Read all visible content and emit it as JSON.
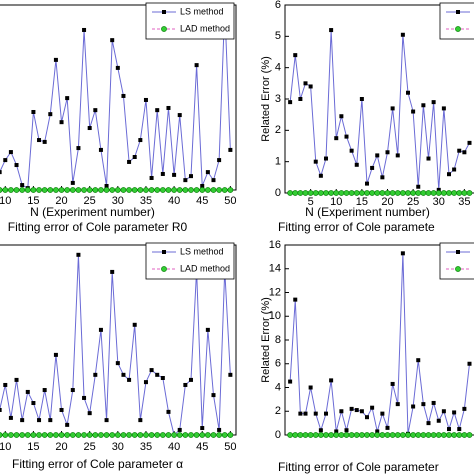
{
  "chart_data": [
    {
      "type": "line",
      "xlabel": "N (Experiment number)",
      "caption": "Fitting error of Cole parameter R0",
      "x": [
        9,
        10,
        11,
        12,
        13,
        14,
        15,
        16,
        17,
        18,
        19,
        20,
        21,
        22,
        23,
        24,
        25,
        26,
        27,
        28,
        29,
        30,
        31,
        32,
        33,
        34,
        35,
        36,
        37,
        38,
        39,
        40,
        41,
        42,
        43,
        44,
        45,
        46,
        47,
        48,
        49,
        50
      ],
      "series": [
        {
          "name": "LS method",
          "color": "#6b6bd6",
          "values": [
            0.58,
            0.97,
            1.23,
            0.81,
            0.16,
            0.06,
            2.53,
            1.62,
            1.56,
            2.46,
            4.22,
            2.2,
            2.98,
            0.23,
            1.36,
            5.19,
            2.01,
            2.59,
            1.3,
            0.13,
            4.86,
            3.96,
            3.05,
            0.91,
            1.07,
            1.62,
            2.92,
            0.39,
            2.59,
            0.52,
            2.66,
            0.49,
            2.43,
            0.32,
            0.45,
            4.05,
            0.13,
            0.58,
            0.32,
            0.97,
            5.9,
            1.3
          ]
        },
        {
          "name": "LAD method",
          "color": "#22aa22",
          "values": [
            0,
            0,
            0,
            0,
            0,
            0,
            0,
            0,
            0,
            0,
            0,
            0,
            0,
            0,
            0,
            0,
            0,
            0,
            0,
            0,
            0,
            0,
            0,
            0,
            0,
            0,
            0,
            0,
            0,
            0,
            0,
            0,
            0,
            0,
            0,
            0,
            0,
            0,
            0,
            0,
            0,
            0
          ]
        }
      ],
      "xlim": [
        0,
        51
      ],
      "ylim": [
        0,
        6
      ],
      "xticks": [
        10,
        15,
        20,
        25,
        30,
        35,
        40,
        45,
        50
      ],
      "legend": "upper right"
    },
    {
      "type": "line",
      "xlabel": "N (Experiment number)",
      "ylabel": "Related Error (%)",
      "caption": "Fitting error of Cole paramete",
      "x": [
        1,
        2,
        3,
        4,
        5,
        6,
        7,
        8,
        9,
        10,
        11,
        12,
        13,
        14,
        15,
        16,
        17,
        18,
        19,
        20,
        21,
        22,
        23,
        24,
        25,
        26,
        27,
        28,
        29,
        30,
        31,
        32,
        33,
        34,
        35,
        36
      ],
      "series": [
        {
          "color": "#6b6bd6",
          "values": [
            2.9,
            4.4,
            3.0,
            3.5,
            3.4,
            1.0,
            0.55,
            1.1,
            5.2,
            1.75,
            2.45,
            1.8,
            1.35,
            0.9,
            3.0,
            0.3,
            0.8,
            1.2,
            0.5,
            1.3,
            2.7,
            1.2,
            5.05,
            3.2,
            2.6,
            0.2,
            2.8,
            1.1,
            2.9,
            0.1,
            2.7,
            0.6,
            0.75,
            1.35,
            1.3,
            1.6
          ]
        },
        {
          "color": "#22aa22",
          "values": [
            0,
            0,
            0,
            0,
            0,
            0,
            0,
            0,
            0,
            0,
            0,
            0,
            0,
            0,
            0,
            0,
            0,
            0,
            0,
            0,
            0,
            0,
            0,
            0,
            0,
            0,
            0,
            0,
            0,
            0,
            0,
            0,
            0,
            0,
            0,
            0
          ]
        }
      ],
      "xlim": [
        0,
        40
      ],
      "ylim": [
        0,
        6
      ],
      "xticks": [
        5,
        10,
        15,
        20,
        25,
        30,
        35
      ],
      "yticks": [
        0,
        1,
        2,
        3,
        4,
        5,
        6
      ],
      "legend": "upper right"
    },
    {
      "type": "line",
      "caption": "Fitting error of Cole parameter α",
      "x": [
        9,
        10,
        11,
        12,
        13,
        14,
        15,
        16,
        17,
        18,
        19,
        20,
        21,
        22,
        23,
        24,
        25,
        26,
        27,
        28,
        29,
        30,
        31,
        32,
        33,
        34,
        35,
        36,
        37,
        38,
        39,
        40,
        41,
        42,
        43,
        44,
        45,
        46,
        47,
        48,
        49,
        50
      ],
      "series": [
        {
          "name": "LS method",
          "color": "#6b6bd6",
          "values": [
            0.79,
            1.58,
            0.54,
            1.74,
            0.47,
            1.36,
            1.01,
            0.47,
            1.42,
            0.47,
            2.53,
            0.79,
            0.32,
            1.42,
            5.69,
            1.17,
            0.69,
            1.9,
            3.32,
            0.47,
            5.15,
            2.27,
            1.9,
            1.74,
            3.48,
            0.47,
            1.67,
            2.05,
            1.9,
            1.8,
            0.73,
            0.0,
            0.16,
            1.58,
            1.74,
            5.21,
            0.22,
            3.32,
            1.26,
            0.16,
            5.21,
            1.9
          ]
        },
        {
          "name": "LAD method",
          "color": "#22aa22",
          "values": [
            0,
            0,
            0,
            0,
            0,
            0,
            0,
            0,
            0,
            0,
            0,
            0,
            0,
            0,
            0,
            0,
            0,
            0,
            0,
            0,
            0,
            0,
            0,
            0,
            0,
            0,
            0,
            0,
            0,
            0,
            0,
            0,
            0,
            0,
            0,
            0,
            0,
            0,
            0,
            0,
            0,
            0
          ]
        }
      ],
      "xlim": [
        0,
        51
      ],
      "ylim": [
        0,
        6
      ],
      "xticks": [
        10,
        15,
        20,
        25,
        30,
        35,
        40,
        45,
        50
      ],
      "legend": "upper right"
    },
    {
      "type": "line",
      "ylabel": "Related Error (%)",
      "caption": "Fitting error of Cole parameter",
      "x": [
        1,
        2,
        3,
        4,
        5,
        6,
        7,
        8,
        9,
        10,
        11,
        12,
        13,
        14,
        15,
        16,
        17,
        18,
        19,
        20,
        21,
        22,
        23,
        24,
        25,
        26,
        27,
        28,
        29,
        30,
        31,
        32,
        33,
        34,
        35,
        36
      ],
      "series": [
        {
          "color": "#6b6bd6",
          "values": [
            4.5,
            11.4,
            1.8,
            1.8,
            4.0,
            1.8,
            0.4,
            1.8,
            4.6,
            0.3,
            2.0,
            0.4,
            2.2,
            2.1,
            2.0,
            1.5,
            2.3,
            0.3,
            1.8,
            0.6,
            4.3,
            2.6,
            15.3,
            0.1,
            2.4,
            6.3,
            2.6,
            1.0,
            2.7,
            1.2,
            2.0,
            0.5,
            1.9,
            0.5,
            2.2,
            6.0
          ]
        },
        {
          "color": "#22aa22",
          "values": [
            0,
            0,
            0,
            0,
            0,
            0,
            0,
            0,
            0,
            0,
            0,
            0,
            0,
            0,
            0,
            0,
            0,
            0,
            0,
            0,
            0,
            0,
            0,
            0,
            0,
            0,
            0,
            0,
            0,
            0,
            0,
            0,
            0,
            0,
            0,
            0
          ]
        }
      ],
      "xlim": [
        0,
        40
      ],
      "ylim": [
        0,
        16
      ],
      "yticks": [
        0,
        2,
        4,
        6,
        8,
        10,
        12,
        14,
        16
      ],
      "legend": "upper right"
    }
  ]
}
